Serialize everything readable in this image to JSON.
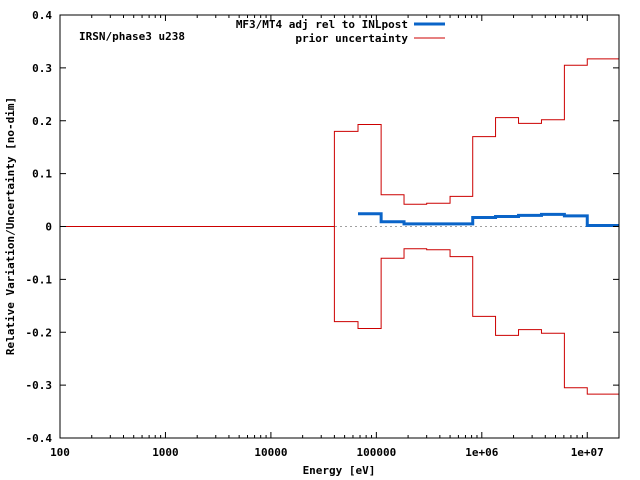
{
  "chart_data": {
    "type": "line",
    "annotation": "IRSN/phase3 u238",
    "xlabel": "Energy [eV]",
    "ylabel": "Relative Variation/Uncertainty [no-dim]",
    "xscale": "log",
    "xlim": [
      100,
      20000000
    ],
    "ylim": [
      -0.4,
      0.4
    ],
    "x_ticks": [
      {
        "value": 100,
        "label": "100"
      },
      {
        "value": 1000,
        "label": "1000"
      },
      {
        "value": 10000,
        "label": "10000"
      },
      {
        "value": 100000,
        "label": "100000"
      },
      {
        "value": 1000000,
        "label": "1e+06"
      },
      {
        "value": 10000000,
        "label": "1e+07"
      }
    ],
    "y_ticks": [
      {
        "value": 0.4,
        "label": "0.4"
      },
      {
        "value": 0.3,
        "label": "0.3"
      },
      {
        "value": 0.2,
        "label": "0.2"
      },
      {
        "value": 0.1,
        "label": "0.1"
      },
      {
        "value": 0,
        "label": "0"
      },
      {
        "value": -0.1,
        "label": "-0.1"
      },
      {
        "value": -0.2,
        "label": "-0.2"
      },
      {
        "value": -0.3,
        "label": "-0.3"
      },
      {
        "value": -0.4,
        "label": "-0.4"
      }
    ],
    "grid": false,
    "zero_line": {
      "style": "dotted",
      "color": "#a0a0a0"
    },
    "legend_position": "top",
    "series": [
      {
        "name": "MF3/MT4 adj rel to INLpost",
        "color": "#0a64c8",
        "style": "histogram",
        "edges": [
          67000,
          111000,
          183000,
          300000,
          500000,
          820000,
          1350000,
          2230000,
          3680000,
          6070000,
          10000000,
          20000000
        ],
        "values": [
          0.024,
          0.009,
          0.005,
          0.005,
          0.005,
          0.017,
          0.019,
          0.021,
          0.023,
          0.02,
          0.002
        ]
      },
      {
        "name": "prior uncertainty",
        "color": "#cc0000",
        "style": "histogram",
        "edges": [
          100,
          40000,
          67000,
          111000,
          183000,
          300000,
          500000,
          820000,
          1350000,
          2230000,
          3680000,
          6070000,
          10000000,
          20000000
        ],
        "values": [
          0,
          0.18,
          0.193,
          0.06,
          0.042,
          0.044,
          0.057,
          0.17,
          0.206,
          0.195,
          0.202,
          0.305,
          0.317
        ]
      },
      {
        "name": "",
        "color": "#cc0000",
        "style": "histogram",
        "edges": [
          100,
          40000,
          67000,
          111000,
          183000,
          300000,
          500000,
          820000,
          1350000,
          2230000,
          3680000,
          6070000,
          10000000,
          20000000
        ],
        "values": [
          0,
          -0.18,
          -0.193,
          -0.06,
          -0.042,
          -0.044,
          -0.057,
          -0.17,
          -0.206,
          -0.195,
          -0.202,
          -0.305,
          -0.317
        ]
      }
    ]
  }
}
